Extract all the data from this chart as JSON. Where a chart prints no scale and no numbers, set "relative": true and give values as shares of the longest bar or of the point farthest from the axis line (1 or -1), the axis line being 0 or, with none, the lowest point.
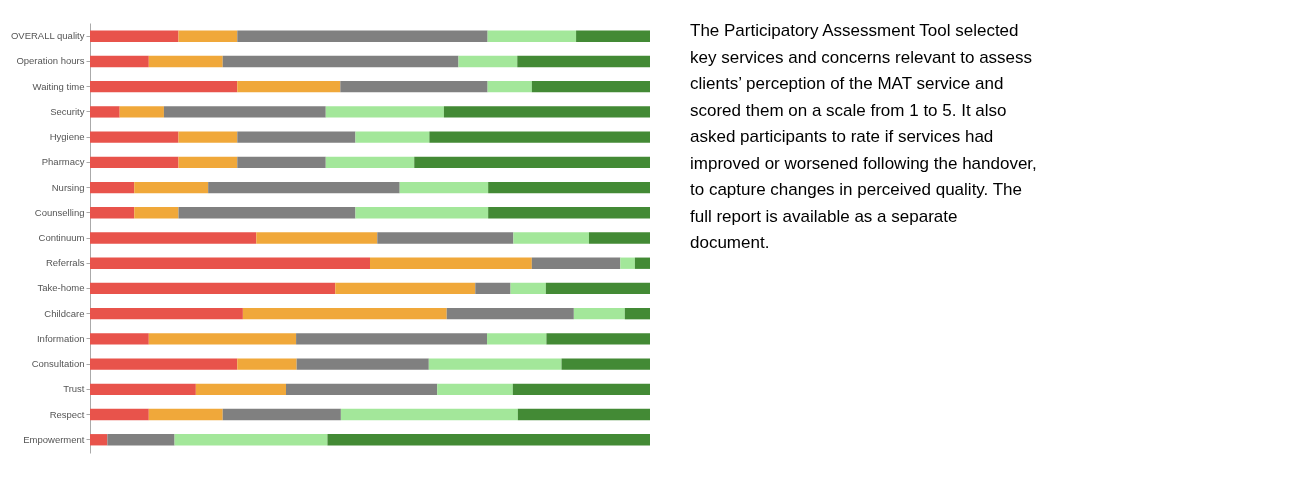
{
  "chart_data": {
    "type": "bar",
    "orientation": "horizontal",
    "stacked": true,
    "relative": true,
    "legend": false,
    "categories": [
      "OVERALL quality",
      "Operation hours",
      "Waiting time",
      "Security",
      "Hygiene",
      "Pharmacy",
      "Nursing",
      "Counselling",
      "Continuum",
      "Referrals",
      "Take-home",
      "Childcare",
      "Information",
      "Consultation",
      "Trust",
      "Respect",
      "Empowerment"
    ],
    "series": [
      {
        "color": "#e8534b",
        "values": [
          0.158,
          0.105,
          0.263,
          0.053,
          0.158,
          0.158,
          0.079,
          0.079,
          0.297,
          0.5,
          0.438,
          0.273,
          0.105,
          0.263,
          0.189,
          0.105,
          0.031
        ]
      },
      {
        "color": "#f0a83a",
        "values": [
          0.105,
          0.132,
          0.184,
          0.079,
          0.105,
          0.105,
          0.132,
          0.079,
          0.216,
          0.289,
          0.25,
          0.364,
          0.263,
          0.106,
          0.161,
          0.132,
          0
        ]
      },
      {
        "color": "#808080",
        "values": [
          0.447,
          0.421,
          0.263,
          0.289,
          0.211,
          0.158,
          0.342,
          0.316,
          0.243,
          0.158,
          0.063,
          0.227,
          0.341,
          0.236,
          0.27,
          0.211,
          0.12
        ]
      },
      {
        "color": "#a3e79a",
        "values": [
          0.158,
          0.105,
          0.079,
          0.211,
          0.132,
          0.158,
          0.158,
          0.237,
          0.135,
          0.026,
          0.063,
          0.091,
          0.106,
          0.237,
          0.135,
          0.316,
          0.273
        ]
      },
      {
        "color": "#438a35",
        "values": [
          0.132,
          0.237,
          0.211,
          0.368,
          0.394,
          0.421,
          0.289,
          0.289,
          0.109,
          0.027,
          0.186,
          0.045,
          0.185,
          0.158,
          0.245,
          0.236,
          0.576
        ]
      }
    ],
    "annotations": [
      "The Participatory Assessment Tool selected key services and concerns relevant to assess clients’ perception of the MAT service and scored them on a scale from 1 to 5. It also asked participants to rate if services had improved or worsened following the handover, to capture changes in perceived quality. The full report is available as a separate document."
    ]
  }
}
